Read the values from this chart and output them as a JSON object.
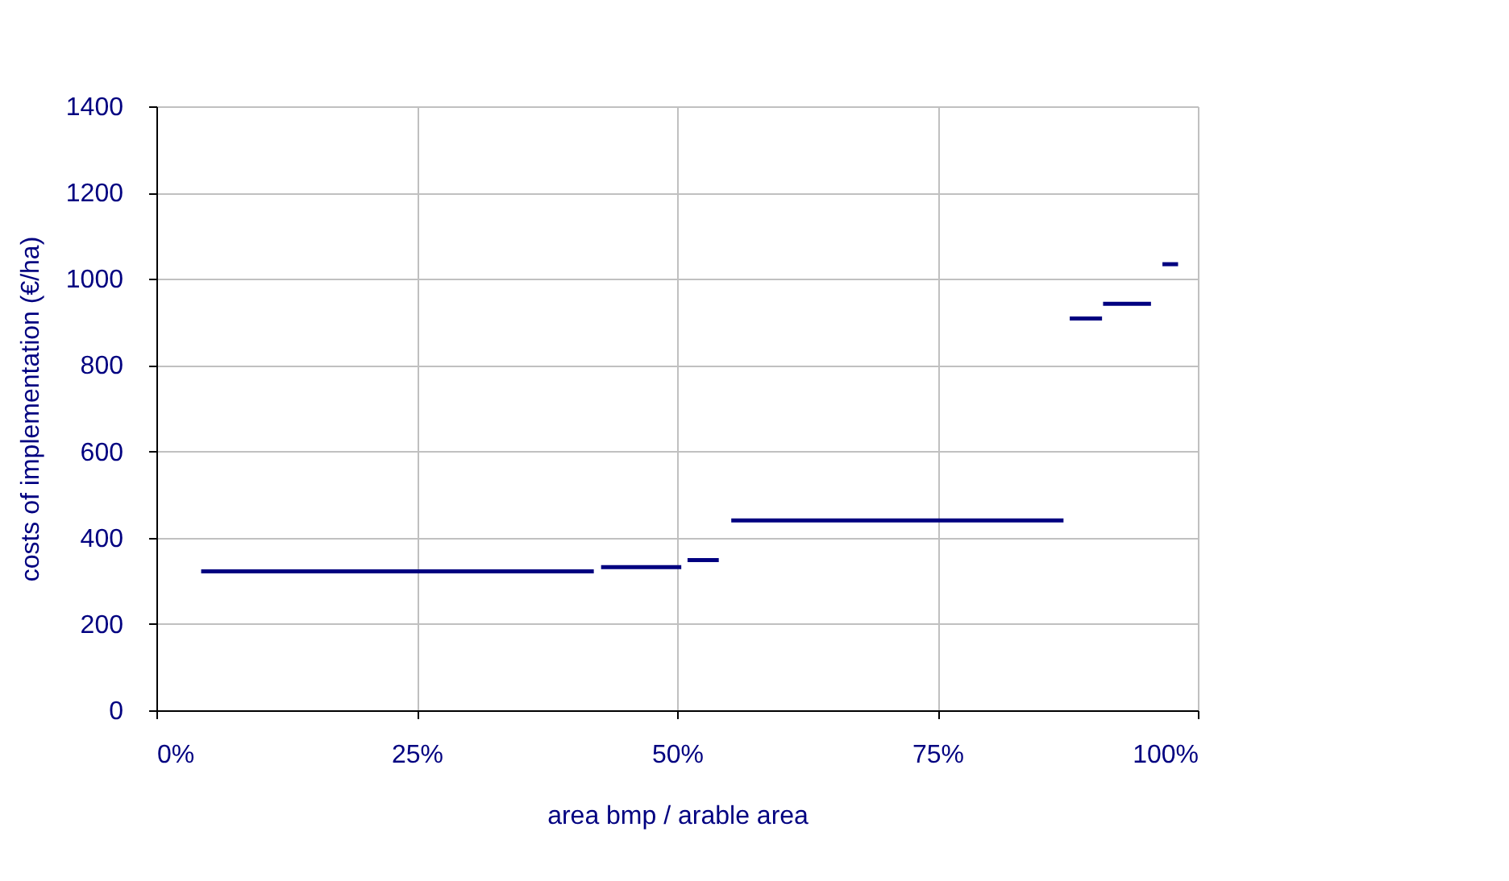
{
  "chart_data": {
    "type": "line",
    "xlabel": "area bmp / arable area",
    "ylabel": "costs of implementation (€/ha)",
    "series": [
      {
        "color": "#000080",
        "x": [
          4.3,
          42.0
        ],
        "values": [
          322,
          322
        ]
      },
      {
        "color": "#000080",
        "x": [
          42.7,
          50.4
        ],
        "values": [
          332,
          332
        ]
      },
      {
        "color": "#000080",
        "x": [
          51.0,
          54.0
        ],
        "values": [
          348,
          348
        ]
      },
      {
        "color": "#000080",
        "x": [
          55.2,
          87.1
        ],
        "values": [
          440,
          440
        ]
      },
      {
        "color": "#000080",
        "x": [
          87.7,
          90.8
        ],
        "values": [
          908,
          908
        ]
      },
      {
        "color": "#000080",
        "x": [
          90.9,
          95.5
        ],
        "values": [
          942,
          942
        ]
      },
      {
        "color": "#000080",
        "x": [
          96.6,
          98.1
        ],
        "values": [
          1034,
          1034
        ]
      }
    ],
    "xlim": [
      0,
      100
    ],
    "xticks": [
      {
        "value": 0,
        "label": "0%"
      },
      {
        "value": 25,
        "label": "25%"
      },
      {
        "value": 50,
        "label": "50%"
      },
      {
        "value": 75,
        "label": "75%"
      },
      {
        "value": 100,
        "label": "100%"
      }
    ],
    "ylim": [
      0,
      1400
    ],
    "yticks": [
      0,
      200,
      400,
      600,
      800,
      1000,
      1200,
      1400
    ],
    "grid": true,
    "marker": "none",
    "line_style": "solid"
  }
}
